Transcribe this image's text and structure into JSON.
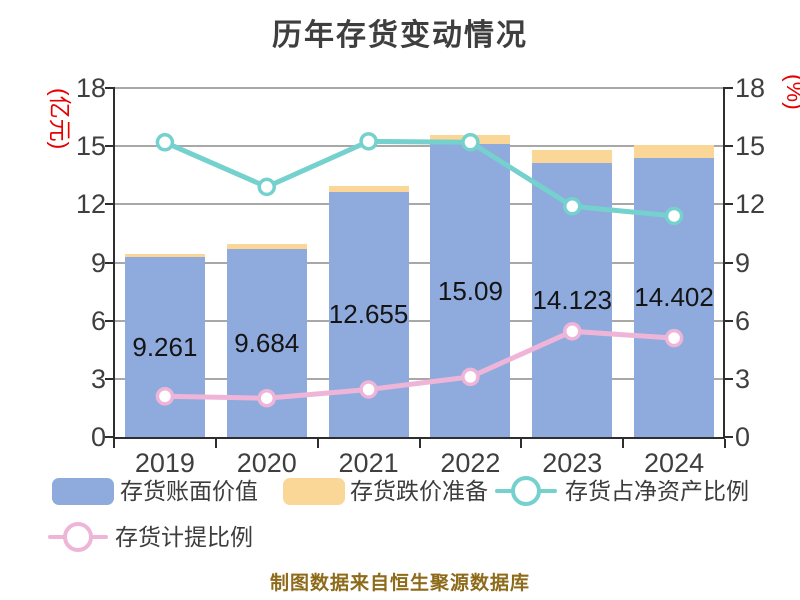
{
  "title": "历年存货变动情况",
  "source_note": "制图数据来自恒生聚源数据库",
  "axes": {
    "left_unit": "(亿元)",
    "right_unit": "(%)",
    "unit_color": "#e60000",
    "tick_color": "#3f3f3f",
    "left_ticks": [
      0,
      3,
      6,
      9,
      12,
      15,
      18
    ],
    "right_ticks": [
      0,
      3,
      6,
      9,
      12,
      15,
      18
    ]
  },
  "legend": [
    {
      "label": "存货账面价值",
      "type": "swatch",
      "color": "#8faadc"
    },
    {
      "label": "存货跌价准备",
      "type": "swatch",
      "color": "#fad796"
    },
    {
      "label": "存货占净资产比例",
      "type": "line",
      "color": "#74d1ce"
    },
    {
      "label": "存货计提比例",
      "type": "line",
      "color": "#efb5d9"
    }
  ],
  "chart_data": {
    "type": "bar",
    "subtype": "stacked-bars-with-line-overlay",
    "title": "历年存货变动情况",
    "categories": [
      "2019",
      "2020",
      "2021",
      "2022",
      "2023",
      "2024"
    ],
    "series": [
      {
        "name": "存货账面价值",
        "type": "bar",
        "axis": "left",
        "color": "#8faadc",
        "values": [
          9.261,
          9.684,
          12.655,
          15.09,
          14.123,
          14.402
        ],
        "labels": [
          "9.261",
          "9.684",
          "12.655",
          "15.09",
          "14.123",
          "14.402"
        ]
      },
      {
        "name": "存货跌价准备",
        "type": "bar",
        "axis": "left",
        "stacked_on": "存货账面价值",
        "color": "#fad796",
        "values": [
          0.2,
          0.25,
          0.3,
          0.5,
          0.7,
          0.65
        ]
      },
      {
        "name": "存货占净资产比例",
        "type": "line",
        "axis": "right",
        "color": "#74d1ce",
        "values": [
          15.2,
          12.9,
          15.25,
          15.2,
          11.9,
          11.4
        ]
      },
      {
        "name": "存货计提比例",
        "type": "line",
        "axis": "right",
        "color": "#efb5d9",
        "values": [
          2.1,
          2.0,
          2.45,
          3.1,
          5.45,
          5.1
        ]
      }
    ],
    "xlabel": "",
    "ylabel_left": "(亿元)",
    "ylabel_right": "(%)",
    "ylim_left": [
      0,
      18
    ],
    "ylim_right": [
      0,
      18
    ],
    "ytick_step": 3,
    "grid": true,
    "legend_position": "bottom"
  }
}
